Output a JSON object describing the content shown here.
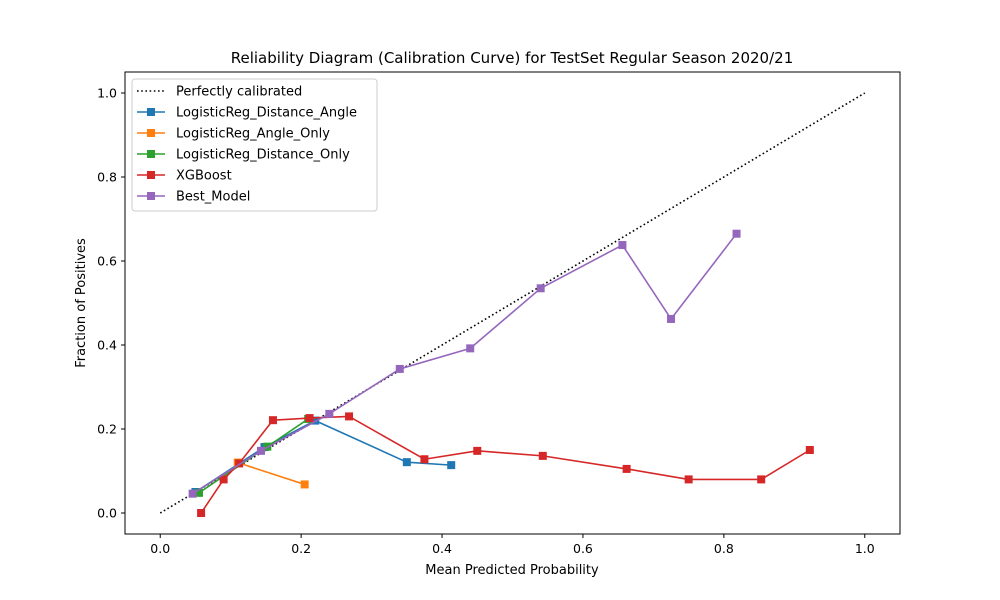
{
  "chart_data": {
    "type": "line",
    "title": "Reliability Diagram (Calibration Curve) for TestSet Regular Season 2020/21",
    "xlabel": "Mean Predicted Probability",
    "ylabel": "Fraction of Positives",
    "xlim": [
      -0.05,
      1.05
    ],
    "ylim": [
      -0.05,
      1.05
    ],
    "xticks": [
      0.0,
      0.2,
      0.4,
      0.6,
      0.8,
      1.0
    ],
    "yticks": [
      0.0,
      0.2,
      0.4,
      0.6,
      0.8,
      1.0
    ],
    "xtick_labels": [
      "0.0",
      "0.2",
      "0.4",
      "0.6",
      "0.8",
      "1.0"
    ],
    "ytick_labels": [
      "0.0",
      "0.2",
      "0.4",
      "0.6",
      "0.8",
      "1.0"
    ],
    "grid": false,
    "legend_position": "top-left",
    "reference": {
      "name": "Perfectly calibrated",
      "x": [
        0.0,
        1.0
      ],
      "y": [
        0.0,
        1.0
      ],
      "color": "#000000",
      "style": "dotted"
    },
    "series": [
      {
        "name": "LogisticReg_Distance_Angle",
        "color": "#1f77b4",
        "x": [
          0.05,
          0.148,
          0.22,
          0.35,
          0.413
        ],
        "y": [
          0.05,
          0.157,
          0.22,
          0.121,
          0.114
        ]
      },
      {
        "name": "LogisticReg_Angle_Only",
        "color": "#ff7f0e",
        "x": [
          0.11,
          0.205
        ],
        "y": [
          0.12,
          0.068
        ]
      },
      {
        "name": "LogisticReg_Distance_Only",
        "color": "#2ca02c",
        "x": [
          0.055,
          0.152,
          0.21
        ],
        "y": [
          0.048,
          0.158,
          0.224
        ]
      },
      {
        "name": "XGBoost",
        "color": "#d62728",
        "x": [
          0.058,
          0.09,
          0.112,
          0.16,
          0.212,
          0.268,
          0.375,
          0.45,
          0.543,
          0.662,
          0.75,
          0.853,
          0.922
        ],
        "y": [
          0.0,
          0.08,
          0.118,
          0.221,
          0.226,
          0.23,
          0.128,
          0.148,
          0.136,
          0.105,
          0.08,
          0.08,
          0.15
        ]
      },
      {
        "name": "Best_Model",
        "color": "#9467bd",
        "x": [
          0.046,
          0.143,
          0.24,
          0.34,
          0.44,
          0.54,
          0.656,
          0.725,
          0.818
        ],
        "y": [
          0.046,
          0.148,
          0.236,
          0.343,
          0.392,
          0.535,
          0.638,
          0.462,
          0.665
        ]
      }
    ]
  }
}
